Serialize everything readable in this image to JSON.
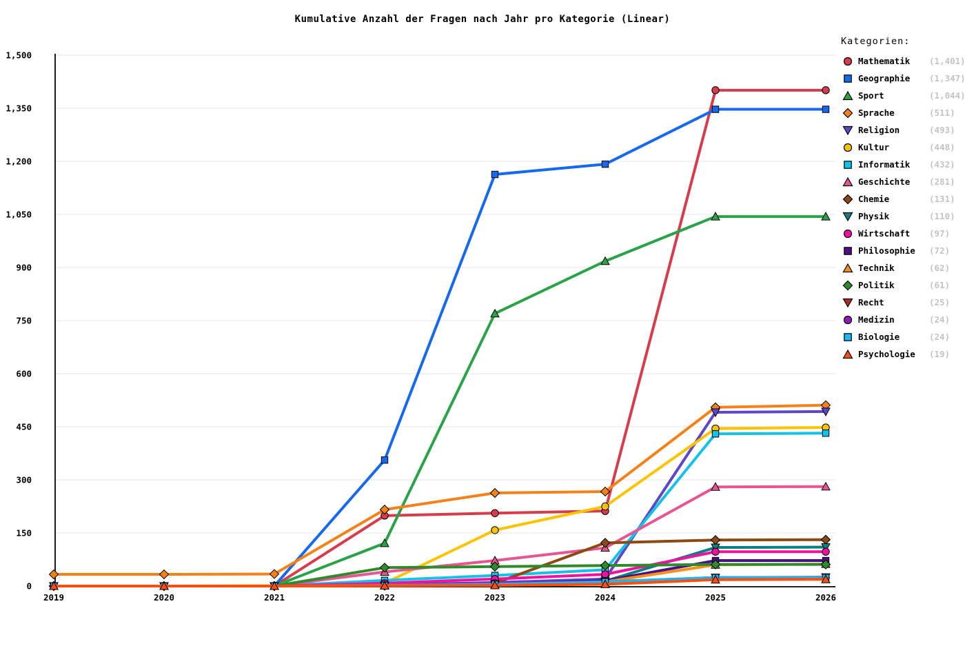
{
  "title": "Kumulative Anzahl der Fragen nach Jahr pro Kategorie (Linear)",
  "legend": {
    "title": "Kategorien:"
  },
  "axes": {
    "x_tick_labels": [
      "2019",
      "2020",
      "2021",
      "2022",
      "2023",
      "2024",
      "2025",
      "2026"
    ],
    "y_tick_labels": [
      "0",
      "150",
      "300",
      "450",
      "600",
      "750",
      "900",
      "1,050",
      "1,200",
      "1,350",
      "1,500"
    ],
    "y_tick_values": [
      0,
      150,
      300,
      450,
      600,
      750,
      900,
      1050,
      1200,
      1350,
      1500
    ]
  },
  "chart_data": {
    "type": "line",
    "title": "Kumulative Anzahl der Fragen nach Jahr pro Kategorie (Linear)",
    "xlabel": "",
    "ylabel": "",
    "x": [
      2019,
      2020,
      2021,
      2022,
      2023,
      2024,
      2025,
      2026
    ],
    "ylim": [
      0,
      1500
    ],
    "grid": true,
    "legend_position": "right",
    "series": [
      {
        "name": "Mathematik",
        "count_label": "(1,401)",
        "total": 1401,
        "color": "#d63c4c",
        "marker": "circle",
        "values": [
          0,
          0,
          0,
          199,
          206,
          212,
          1401,
          1401
        ]
      },
      {
        "name": "Geographie",
        "count_label": "(1,347)",
        "total": 1347,
        "color": "#1569f0",
        "marker": "square",
        "values": [
          0,
          0,
          0,
          356,
          1163,
          1192,
          1347,
          1347
        ]
      },
      {
        "name": "Sport",
        "count_label": "(1,044)",
        "total": 1044,
        "color": "#2aa348",
        "marker": "triangle",
        "values": [
          0,
          0,
          0,
          121,
          770,
          918,
          1044,
          1044
        ]
      },
      {
        "name": "Sprache",
        "count_label": "(511)",
        "total": 511,
        "color": "#f68119",
        "marker": "diamond",
        "values": [
          33,
          33,
          34,
          216,
          263,
          267,
          505,
          511
        ]
      },
      {
        "name": "Religion",
        "count_label": "(493)",
        "total": 493,
        "color": "#5e45c9",
        "marker": "triangle_down",
        "values": [
          0,
          0,
          0,
          3,
          10,
          20,
          491,
          493
        ]
      },
      {
        "name": "Kultur",
        "count_label": "(448)",
        "total": 448,
        "color": "#fcc300",
        "marker": "circle",
        "values": [
          0,
          0,
          1,
          8,
          158,
          225,
          445,
          448
        ]
      },
      {
        "name": "Informatik",
        "count_label": "(432)",
        "total": 432,
        "color": "#12c2e8",
        "marker": "square",
        "values": [
          0,
          0,
          0,
          16,
          30,
          46,
          430,
          432
        ]
      },
      {
        "name": "Geschichte",
        "count_label": "(281)",
        "total": 281,
        "color": "#e85590",
        "marker": "triangle",
        "values": [
          0,
          0,
          0,
          40,
          72,
          108,
          280,
          281
        ]
      },
      {
        "name": "Chemie",
        "count_label": "(131)",
        "total": 131,
        "color": "#8c4a12",
        "marker": "diamond",
        "values": [
          0,
          0,
          0,
          1,
          8,
          122,
          130,
          131
        ]
      },
      {
        "name": "Physik",
        "count_label": "(110)",
        "total": 110,
        "color": "#0a8083",
        "marker": "triangle_down",
        "values": [
          0,
          0,
          0,
          2,
          6,
          14,
          109,
          110
        ]
      },
      {
        "name": "Wirtschaft",
        "count_label": "(97)",
        "total": 97,
        "color": "#f210a0",
        "marker": "circle",
        "values": [
          0,
          0,
          0,
          8,
          20,
          33,
          97,
          97
        ]
      },
      {
        "name": "Philosophie",
        "count_label": "(72)",
        "total": 72,
        "color": "#4d0f87",
        "marker": "square",
        "values": [
          0,
          0,
          0,
          2,
          6,
          15,
          72,
          72
        ]
      },
      {
        "name": "Technik",
        "count_label": "(62)",
        "total": 62,
        "color": "#f79019",
        "marker": "triangle",
        "values": [
          0,
          0,
          0,
          2,
          6,
          12,
          60,
          62
        ]
      },
      {
        "name": "Politik",
        "count_label": "(61)",
        "total": 61,
        "color": "#2e8b2a",
        "marker": "diamond",
        "values": [
          0,
          0,
          0,
          52,
          55,
          58,
          61,
          61
        ]
      },
      {
        "name": "Recht",
        "count_label": "(25)",
        "total": 25,
        "color": "#b22a2a",
        "marker": "triangle_down",
        "values": [
          0,
          0,
          0,
          1,
          4,
          10,
          24,
          25
        ]
      },
      {
        "name": "Medizin",
        "count_label": "(24)",
        "total": 24,
        "color": "#9119b8",
        "marker": "circle",
        "values": [
          0,
          0,
          0,
          2,
          8,
          12,
          24,
          24
        ]
      },
      {
        "name": "Biologie",
        "count_label": "(24)",
        "total": 24,
        "color": "#1fb5f2",
        "marker": "square",
        "values": [
          0,
          0,
          0,
          2,
          5,
          12,
          24,
          24
        ]
      },
      {
        "name": "Psychologie",
        "count_label": "(19)",
        "total": 19,
        "color": "#fc4e0c",
        "marker": "triangle",
        "values": [
          0,
          0,
          0,
          1,
          2,
          5,
          18,
          19
        ]
      }
    ],
    "style": {
      "grid_color": "#e9e9e9",
      "axis_color": "#000000",
      "count_color": "#c4c4c4",
      "background": "#ffffff"
    }
  }
}
